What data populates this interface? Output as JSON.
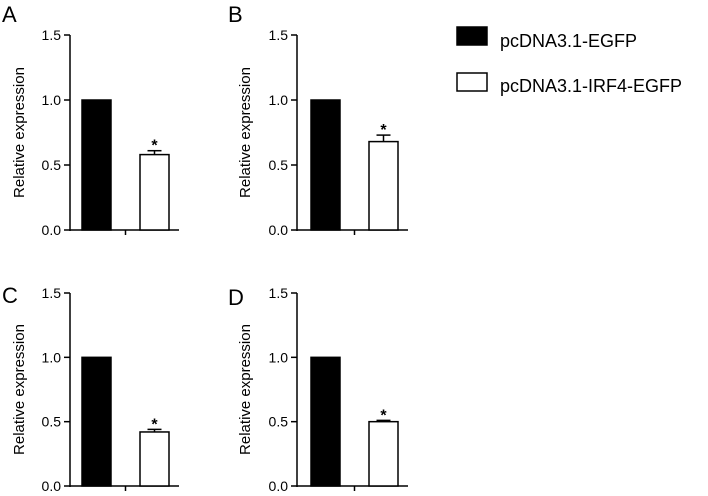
{
  "legend": {
    "items": [
      {
        "label": "pcDNA3.1-EGFP",
        "fill": "#000000"
      },
      {
        "label": "pcDNA3.1-IRF4-EGFP",
        "fill": "#ffffff"
      }
    ]
  },
  "chart_data": [
    {
      "panel": "A",
      "type": "bar",
      "ylabel": "Relative expression",
      "ylim": [
        0,
        1.5
      ],
      "yticks": [
        "0.0",
        "0.5",
        "1.0",
        "1.5"
      ],
      "series": [
        {
          "name": "pcDNA3.1-EGFP",
          "value": 1.0,
          "error": 0,
          "significance": ""
        },
        {
          "name": "pcDNA3.1-IRF4-EGFP",
          "value": 0.58,
          "error": 0.03,
          "significance": "*"
        }
      ]
    },
    {
      "panel": "B",
      "type": "bar",
      "ylabel": "Relative expression",
      "ylim": [
        0,
        1.5
      ],
      "yticks": [
        "0.0",
        "0.5",
        "1.0",
        "1.5"
      ],
      "series": [
        {
          "name": "pcDNA3.1-EGFP",
          "value": 1.0,
          "error": 0,
          "significance": ""
        },
        {
          "name": "pcDNA3.1-IRF4-EGFP",
          "value": 0.68,
          "error": 0.05,
          "significance": "*"
        }
      ]
    },
    {
      "panel": "C",
      "type": "bar",
      "ylabel": "Relative expression",
      "ylim": [
        0,
        1.5
      ],
      "yticks": [
        "0.0",
        "0.5",
        "1.0",
        "1.5"
      ],
      "series": [
        {
          "name": "pcDNA3.1-EGFP",
          "value": 1.0,
          "error": 0,
          "significance": ""
        },
        {
          "name": "pcDNA3.1-IRF4-EGFP",
          "value": 0.42,
          "error": 0.02,
          "significance": "*"
        }
      ]
    },
    {
      "panel": "D",
      "type": "bar",
      "ylabel": "Relative expression",
      "ylim": [
        0,
        1.5
      ],
      "yticks": [
        "0.0",
        "0.5",
        "1.0",
        "1.5"
      ],
      "series": [
        {
          "name": "pcDNA3.1-EGFP",
          "value": 1.0,
          "error": 0,
          "significance": ""
        },
        {
          "name": "pcDNA3.1-IRF4-EGFP",
          "value": 0.5,
          "error": 0.01,
          "significance": "*"
        }
      ]
    }
  ]
}
